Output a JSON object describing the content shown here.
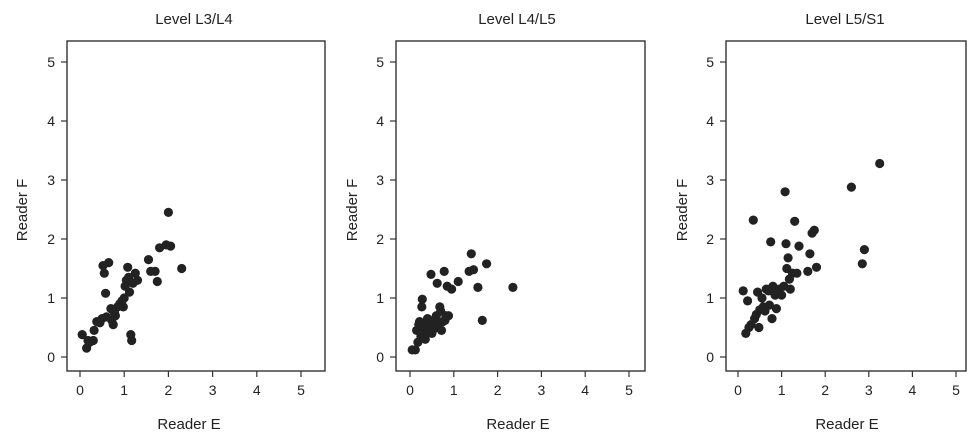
{
  "figure": {
    "point_color": "#222222",
    "axis_color": "#333333"
  },
  "chart_data": [
    {
      "type": "scatter",
      "title": "Level L3/L4",
      "xlabel": "Reader E",
      "ylabel": "Reader F",
      "xlim": [
        0,
        5
      ],
      "ylim": [
        0,
        5
      ],
      "xticks": [
        "0",
        "1",
        "2",
        "3",
        "4",
        "5"
      ],
      "yticks": [
        "0",
        "1",
        "2",
        "3",
        "4",
        "5"
      ],
      "grid": false,
      "points": [
        [
          0.05,
          0.38
        ],
        [
          0.15,
          0.15
        ],
        [
          0.18,
          0.28
        ],
        [
          0.22,
          0.25
        ],
        [
          0.3,
          0.28
        ],
        [
          0.32,
          0.45
        ],
        [
          0.38,
          0.6
        ],
        [
          0.45,
          0.58
        ],
        [
          0.5,
          0.65
        ],
        [
          0.52,
          1.55
        ],
        [
          0.55,
          1.42
        ],
        [
          0.58,
          1.08
        ],
        [
          0.6,
          0.68
        ],
        [
          0.65,
          1.6
        ],
        [
          0.7,
          0.82
        ],
        [
          0.72,
          0.62
        ],
        [
          0.75,
          0.55
        ],
        [
          0.78,
          0.75
        ],
        [
          0.8,
          0.7
        ],
        [
          0.85,
          0.85
        ],
        [
          0.9,
          0.9
        ],
        [
          0.95,
          0.95
        ],
        [
          0.98,
          0.85
        ],
        [
          1.0,
          1.0
        ],
        [
          1.02,
          1.2
        ],
        [
          1.05,
          1.3
        ],
        [
          1.08,
          1.52
        ],
        [
          1.1,
          1.35
        ],
        [
          1.12,
          1.1
        ],
        [
          1.15,
          0.38
        ],
        [
          1.17,
          0.28
        ],
        [
          1.2,
          1.25
        ],
        [
          1.25,
          1.42
        ],
        [
          1.3,
          1.3
        ],
        [
          1.55,
          1.65
        ],
        [
          1.6,
          1.45
        ],
        [
          1.7,
          1.45
        ],
        [
          1.75,
          1.28
        ],
        [
          1.8,
          1.85
        ],
        [
          1.95,
          1.9
        ],
        [
          2.0,
          2.45
        ],
        [
          2.05,
          1.88
        ],
        [
          2.3,
          1.5
        ]
      ]
    },
    {
      "type": "scatter",
      "title": "Level L4/L5",
      "xlabel": "Reader E",
      "ylabel": "Reader F",
      "xlim": [
        0,
        5
      ],
      "ylim": [
        0,
        5
      ],
      "xticks": [
        "0",
        "1",
        "2",
        "3",
        "4",
        "5"
      ],
      "yticks": [
        "0",
        "1",
        "2",
        "3",
        "4",
        "5"
      ],
      "grid": false,
      "points": [
        [
          0.05,
          0.12
        ],
        [
          0.12,
          0.12
        ],
        [
          0.15,
          0.45
        ],
        [
          0.18,
          0.25
        ],
        [
          0.2,
          0.55
        ],
        [
          0.22,
          0.6
        ],
        [
          0.25,
          0.35
        ],
        [
          0.27,
          0.85
        ],
        [
          0.28,
          0.98
        ],
        [
          0.3,
          0.45
        ],
        [
          0.32,
          0.55
        ],
        [
          0.35,
          0.3
        ],
        [
          0.38,
          0.4
        ],
        [
          0.4,
          0.65
        ],
        [
          0.42,
          0.5
        ],
        [
          0.45,
          0.55
        ],
        [
          0.48,
          1.4
        ],
        [
          0.5,
          0.4
        ],
        [
          0.52,
          0.6
        ],
        [
          0.55,
          0.48
        ],
        [
          0.58,
          0.65
        ],
        [
          0.6,
          0.7
        ],
        [
          0.62,
          1.25
        ],
        [
          0.65,
          0.58
        ],
        [
          0.68,
          0.85
        ],
        [
          0.7,
          0.78
        ],
        [
          0.72,
          0.45
        ],
        [
          0.75,
          0.6
        ],
        [
          0.78,
          1.45
        ],
        [
          0.8,
          0.62
        ],
        [
          0.82,
          0.7
        ],
        [
          0.85,
          1.2
        ],
        [
          0.88,
          0.7
        ],
        [
          0.95,
          1.15
        ],
        [
          1.1,
          1.28
        ],
        [
          1.35,
          1.45
        ],
        [
          1.4,
          1.75
        ],
        [
          1.45,
          1.48
        ],
        [
          1.55,
          1.18
        ],
        [
          1.65,
          0.62
        ],
        [
          1.75,
          1.58
        ],
        [
          2.35,
          1.18
        ]
      ]
    },
    {
      "type": "scatter",
      "title": "Level L5/S1",
      "xlabel": "Reader E",
      "ylabel": "Reader F",
      "xlim": [
        0,
        5
      ],
      "ylim": [
        0,
        5
      ],
      "xticks": [
        "0",
        "1",
        "2",
        "3",
        "4",
        "5"
      ],
      "yticks": [
        "0",
        "1",
        "2",
        "3",
        "4",
        "5"
      ],
      "grid": false,
      "points": [
        [
          0.12,
          1.12
        ],
        [
          0.18,
          0.4
        ],
        [
          0.22,
          0.95
        ],
        [
          0.25,
          0.5
        ],
        [
          0.3,
          0.55
        ],
        [
          0.35,
          2.32
        ],
        [
          0.38,
          0.65
        ],
        [
          0.42,
          0.72
        ],
        [
          0.45,
          1.1
        ],
        [
          0.48,
          0.5
        ],
        [
          0.5,
          0.8
        ],
        [
          0.55,
          1.0
        ],
        [
          0.58,
          0.85
        ],
        [
          0.62,
          0.78
        ],
        [
          0.65,
          1.15
        ],
        [
          0.7,
          1.12
        ],
        [
          0.72,
          0.88
        ],
        [
          0.75,
          1.95
        ],
        [
          0.78,
          0.65
        ],
        [
          0.8,
          1.2
        ],
        [
          0.85,
          1.05
        ],
        [
          0.88,
          0.82
        ],
        [
          0.9,
          1.1
        ],
        [
          0.95,
          1.15
        ],
        [
          1.0,
          1.05
        ],
        [
          1.05,
          1.2
        ],
        [
          1.08,
          2.8
        ],
        [
          1.1,
          1.92
        ],
        [
          1.12,
          1.5
        ],
        [
          1.15,
          1.68
        ],
        [
          1.18,
          1.32
        ],
        [
          1.2,
          1.15
        ],
        [
          1.25,
          1.42
        ],
        [
          1.3,
          2.3
        ],
        [
          1.35,
          1.42
        ],
        [
          1.4,
          1.88
        ],
        [
          1.6,
          1.45
        ],
        [
          1.65,
          1.75
        ],
        [
          1.7,
          2.1
        ],
        [
          1.75,
          2.15
        ],
        [
          1.8,
          1.52
        ],
        [
          2.6,
          2.88
        ],
        [
          2.85,
          1.58
        ],
        [
          2.9,
          1.82
        ],
        [
          3.25,
          3.28
        ]
      ]
    }
  ]
}
